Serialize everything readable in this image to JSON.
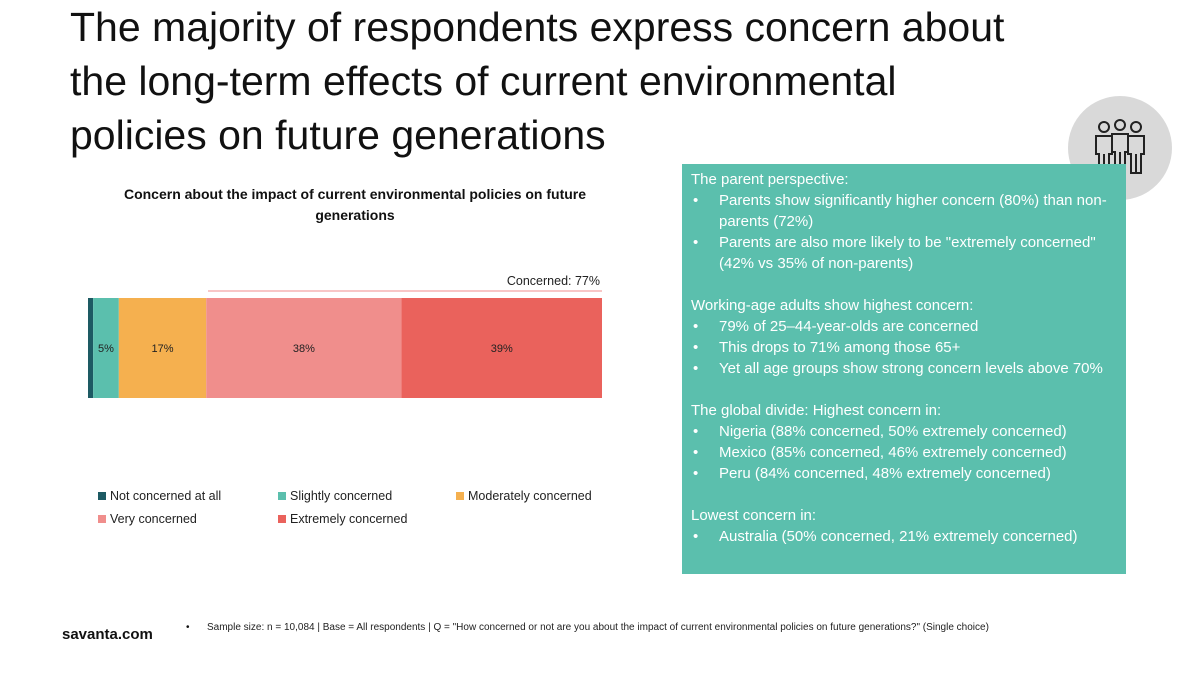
{
  "title_lines": [
    "The majority of respondents express concern about",
    "the long-term effects of current environmental",
    "policies on future generations"
  ],
  "people_icon": "people-group-icon",
  "chart_data": {
    "type": "bar",
    "orientation": "horizontal-stacked-100",
    "title": "Concern about the impact of current environmental policies on future generations",
    "categories": [
      ""
    ],
    "series": [
      {
        "name": "Not concerned at all",
        "values": [
          1
        ],
        "color": "#1d5a63",
        "label": ""
      },
      {
        "name": "Slightly concerned",
        "values": [
          5
        ],
        "color": "#5bbfad",
        "label": "5%"
      },
      {
        "name": "Moderately concerned",
        "values": [
          17
        ],
        "color": "#f5b04f",
        "label": "17%"
      },
      {
        "name": "Very concerned",
        "values": [
          38
        ],
        "color": "#f08e8c",
        "label": "38%"
      },
      {
        "name": "Extremely concerned",
        "values": [
          39
        ],
        "color": "#ea625c",
        "label": "39%"
      }
    ],
    "bracket_label": "Concerned: 77%",
    "legend_position": "bottom"
  },
  "panel": {
    "sections": [
      {
        "title": "The parent perspective:",
        "bullets": [
          "Parents show significantly higher concern (80%) than non-parents (72%)",
          "Parents are also more likely to be \"extremely concerned\" (42% vs 35% of non-parents)"
        ]
      },
      {
        "title": "Working-age adults show highest concern:",
        "bullets": [
          "79% of 25–44-year-olds are concerned",
          "This drops to 71% among those 65+",
          "Yet all age groups show strong concern levels above 70%"
        ]
      },
      {
        "title": "The global divide: Highest concern in:",
        "bullets": [
          "Nigeria (88% concerned, 50% extremely concerned)",
          "Mexico (85% concerned, 46% extremely concerned)",
          "Peru (84% concerned, 48% extremely concerned)"
        ]
      },
      {
        "title": "Lowest concern in:",
        "bullets": [
          "Australia (50% concerned, 21% extremely concerned)"
        ]
      }
    ]
  },
  "footer": {
    "brand": "savanta.com",
    "note": "Sample size: n = 10,084 | Base = All respondents | Q = \"How concerned or not are you about the impact of current environmental policies on future generations?\" (Single choice)"
  }
}
